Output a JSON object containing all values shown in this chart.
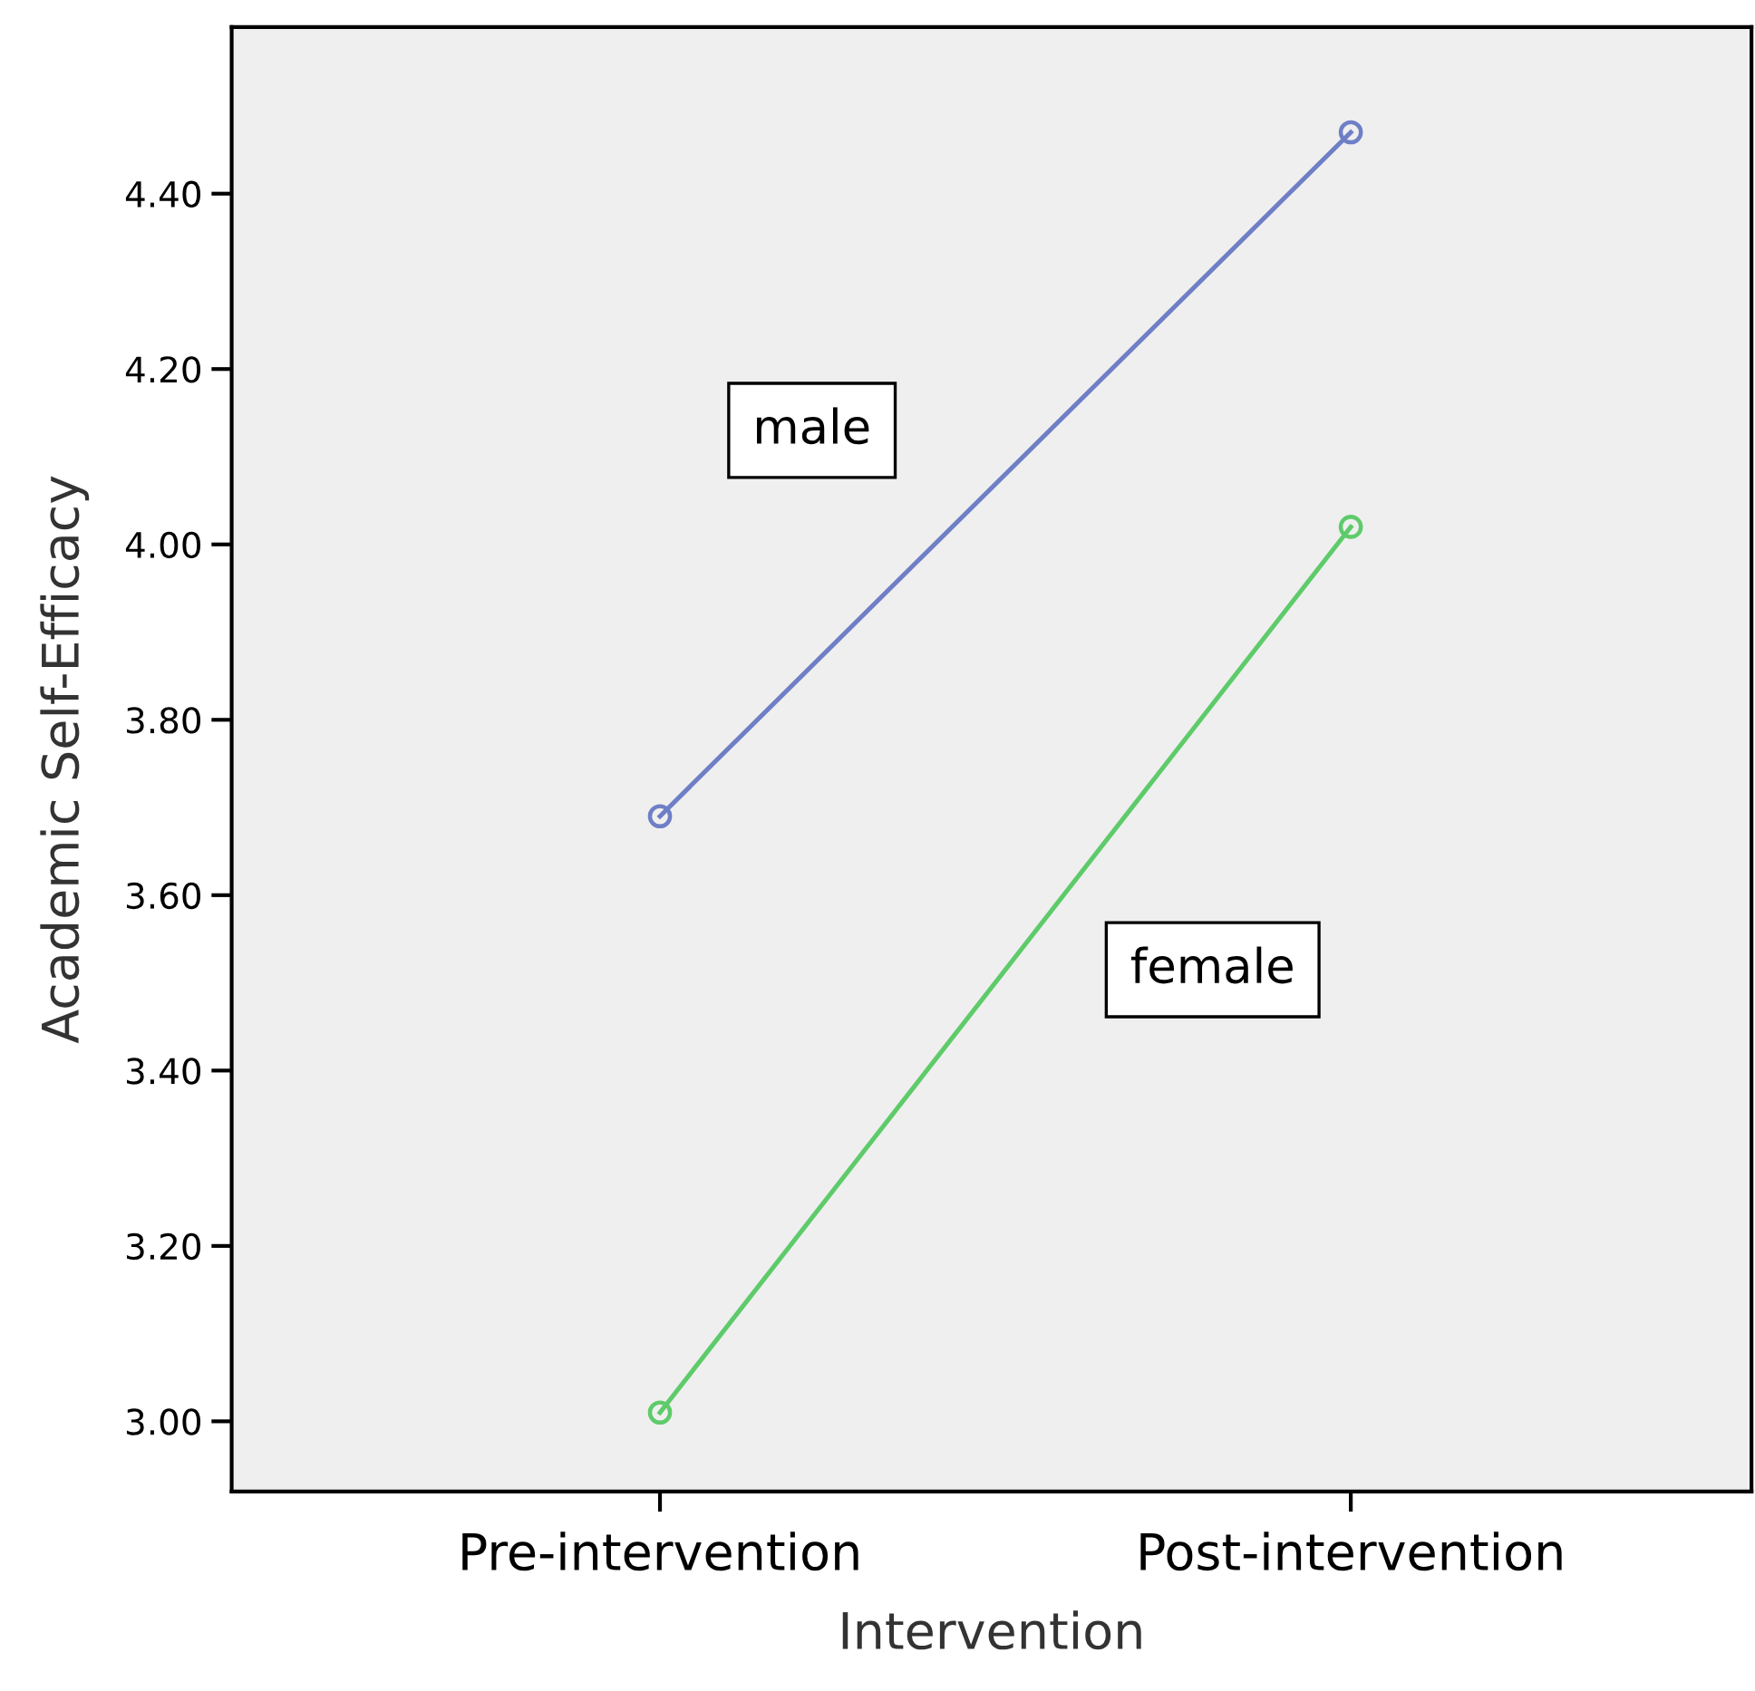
{
  "chart_data": {
    "type": "line",
    "xlabel": "Intervention",
    "ylabel": "Academic Self-Efficacy",
    "categories": [
      "Pre-intervention",
      "Post-intervention"
    ],
    "series": [
      {
        "name": "male",
        "color": "#6f7fc6",
        "values": [
          3.69,
          4.47
        ]
      },
      {
        "name": "female",
        "color": "#5ecb6a",
        "values": [
          3.01,
          4.02
        ]
      }
    ],
    "ylim": [
      2.92,
      4.59
    ],
    "yticks": [
      {
        "value": 3.0,
        "label": "3.00"
      },
      {
        "value": 3.2,
        "label": "3.20"
      },
      {
        "value": 3.4,
        "label": "3.40"
      },
      {
        "value": 3.6,
        "label": "3.60"
      },
      {
        "value": 3.8,
        "label": "3.80"
      },
      {
        "value": 4.0,
        "label": "4.00"
      },
      {
        "value": 4.2,
        "label": "4.20"
      },
      {
        "value": 4.4,
        "label": "4.40"
      }
    ],
    "marker": "circle",
    "line_style": "solid",
    "grid": false,
    "legend": false
  }
}
